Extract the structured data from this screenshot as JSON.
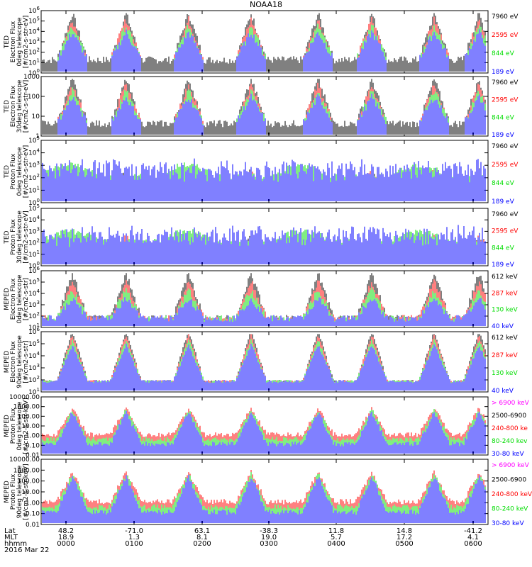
{
  "title": "NOAA18",
  "chart_data": [
    {
      "type": "line",
      "panel": 1,
      "ylabel": [
        "TED",
        "Electron Flux",
        "0deg telescope",
        "[#/cm2-s-str-eV]"
      ],
      "y_scale": "log",
      "ylim": [
        1,
        1000000
      ],
      "yticks": [
        "10^0",
        "10^1",
        "10^2",
        "10^3",
        "10^4",
        "10^5",
        "10^6"
      ],
      "series": [
        {
          "name": "7960 eV",
          "color": "#000000"
        },
        {
          "name": "2595 eV",
          "color": "#ff0000"
        },
        {
          "name": "844 eV",
          "color": "#00dd00"
        },
        {
          "name": "189 eV",
          "color": "#0000ff"
        }
      ]
    },
    {
      "type": "line",
      "panel": 2,
      "ylabel": [
        "TED",
        "Electron Flux",
        "30deg telescope",
        "[#/cm2-s-str-eV]"
      ],
      "y_scale": "log",
      "ylim": [
        1,
        3000
      ],
      "yticks": [
        "1",
        "10",
        "100",
        "1000"
      ],
      "series": [
        {
          "name": "7960 eV",
          "color": "#000000"
        },
        {
          "name": "2595 eV",
          "color": "#ff0000"
        },
        {
          "name": "844 eV",
          "color": "#00dd00"
        },
        {
          "name": "189 eV",
          "color": "#0000ff"
        }
      ]
    },
    {
      "type": "line",
      "panel": 3,
      "ylabel": [
        "TED",
        "Proton Flux",
        "0deg telescope",
        "[#/cm2-s-str-eV]"
      ],
      "y_scale": "log",
      "ylim": [
        1,
        100000
      ],
      "yticks": [
        "10^0",
        "10^1",
        "10^2",
        "10^3",
        "10^4",
        "10^5"
      ],
      "series": [
        {
          "name": "7960 eV",
          "color": "#000000"
        },
        {
          "name": "2595 eV",
          "color": "#ff0000"
        },
        {
          "name": "844 eV",
          "color": "#00dd00"
        },
        {
          "name": "189 eV",
          "color": "#0000ff"
        }
      ]
    },
    {
      "type": "line",
      "panel": 4,
      "ylabel": [
        "TED",
        "Proton Flux",
        "30deg telescope",
        "[#/cm2-s-str-eV]"
      ],
      "y_scale": "log",
      "ylim": [
        1,
        100000
      ],
      "yticks": [
        "10^0",
        "10^1",
        "10^2",
        "10^3",
        "10^4",
        "10^5"
      ],
      "series": [
        {
          "name": "7960 eV",
          "color": "#000000"
        },
        {
          "name": "2595 eV",
          "color": "#ff0000"
        },
        {
          "name": "844 eV",
          "color": "#00dd00"
        },
        {
          "name": "189 eV",
          "color": "#0000ff"
        }
      ]
    },
    {
      "type": "line",
      "panel": 5,
      "ylabel": [
        "MEPED",
        "Electron Flux",
        "0deg telescope",
        "[#/cm2-s-str]"
      ],
      "y_scale": "log",
      "ylim": [
        1,
        10000000
      ],
      "yticks": [
        "10^1",
        "10^2",
        "10^3",
        "10^4",
        "10^5",
        "10^6"
      ],
      "series": [
        {
          "name": "612 keV",
          "color": "#000000"
        },
        {
          "name": "287 keV",
          "color": "#ff0000"
        },
        {
          "name": "130 keV",
          "color": "#00dd00"
        },
        {
          "name": "40 keV",
          "color": "#0000ff"
        }
      ]
    },
    {
      "type": "line",
      "panel": 6,
      "ylabel": [
        "MEPED",
        "Electron Flux",
        "90deg telescope",
        "[#/cm2-s-str]"
      ],
      "y_scale": "log",
      "ylim": [
        10,
        1000000
      ],
      "yticks": [
        "10^1",
        "10^2",
        "10^3",
        "10^4",
        "10^5",
        "10^6"
      ],
      "series": [
        {
          "name": "612 keV",
          "color": "#000000"
        },
        {
          "name": "287 keV",
          "color": "#ff0000"
        },
        {
          "name": "130 keV",
          "color": "#00dd00"
        },
        {
          "name": "40 keV",
          "color": "#0000ff"
        }
      ]
    },
    {
      "type": "line",
      "panel": 7,
      "ylabel": [
        "MEPED",
        "Proton Flux",
        "0deg telescope",
        "[#/cm2-s-str-keV]"
      ],
      "y_scale": "log",
      "ylim": [
        0.01,
        10000
      ],
      "yticks": [
        "0.01",
        "0.10",
        "1.00",
        "10.00",
        "100.00",
        "1000.00",
        "10000.00"
      ],
      "series": [
        {
          "name": "> 6900 keV",
          "color": "#ff00ff"
        },
        {
          "name": "2500-6900",
          "color": "#000000"
        },
        {
          "name": "240-800 ke",
          "color": "#ff0000"
        },
        {
          "name": "80-240 kev",
          "color": "#00dd00"
        },
        {
          "name": "30-80 keV",
          "color": "#0000ff"
        }
      ]
    },
    {
      "type": "line",
      "panel": 8,
      "ylabel": [
        "MEPED",
        "Proton Flux",
        "90deg telescope",
        "[#/cm2-s-str-keV]"
      ],
      "y_scale": "log",
      "ylim": [
        0.01,
        10000
      ],
      "yticks": [
        "0.01",
        "0.10",
        "1.00",
        "10.00",
        "100.00",
        "1000.00",
        "10000.00"
      ],
      "series": [
        {
          "name": "> 6900 keV",
          "color": "#ff00ff"
        },
        {
          "name": "2500-6900",
          "color": "#000000"
        },
        {
          "name": "240-800 keV",
          "color": "#ff0000"
        },
        {
          "name": "80-240 keV",
          "color": "#00dd00"
        },
        {
          "name": "30-80 keV",
          "color": "#0000ff"
        }
      ]
    }
  ],
  "footer": {
    "rows": [
      {
        "label": "Lat",
        "values": [
          "48.2",
          "-71.0",
          "63.1",
          "-38.3",
          "11.8",
          "14.8",
          "-41.2"
        ]
      },
      {
        "label": "MLT",
        "values": [
          "18.9",
          "1.3",
          "8.1",
          "19.0",
          "5.7",
          "17.2",
          "4.1"
        ]
      },
      {
        "label": "hhmm",
        "values": [
          "0000",
          "0100",
          "0200",
          "0300",
          "0400",
          "0500",
          "0600"
        ]
      }
    ],
    "date": "2016 Mar 22"
  }
}
